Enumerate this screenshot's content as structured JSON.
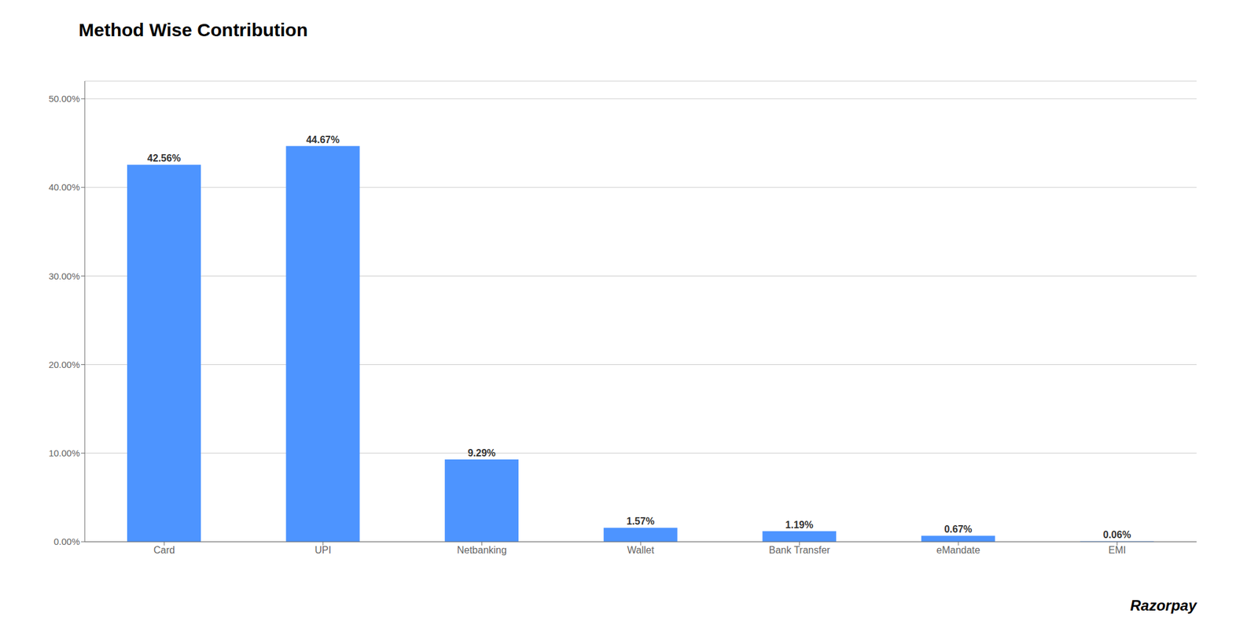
{
  "chart_data": {
    "type": "bar",
    "title": "Method Wise Contribution",
    "categories": [
      "Card",
      "UPI",
      "Netbanking",
      "Wallet",
      "Bank Transfer",
      "eMandate",
      "EMI"
    ],
    "values": [
      42.56,
      44.67,
      9.29,
      1.57,
      1.19,
      0.67,
      0.06
    ],
    "value_labels": [
      "42.56%",
      "44.67%",
      "9.29%",
      "1.57%",
      "1.19%",
      "0.67%",
      "0.06%"
    ],
    "data_labels": true,
    "color": "#4d94ff",
    "ylim": [
      0,
      52
    ],
    "yticks": [
      {
        "value": 0,
        "label": "0.00%"
      },
      {
        "value": 10,
        "label": "10.00%"
      },
      {
        "value": 20,
        "label": "20.00%"
      },
      {
        "value": 30,
        "label": "30.00%"
      },
      {
        "value": 40,
        "label": "40.00%"
      },
      {
        "value": 50,
        "label": "50.00%"
      }
    ],
    "grid": true,
    "annotations": [
      "Razorpay"
    ]
  }
}
